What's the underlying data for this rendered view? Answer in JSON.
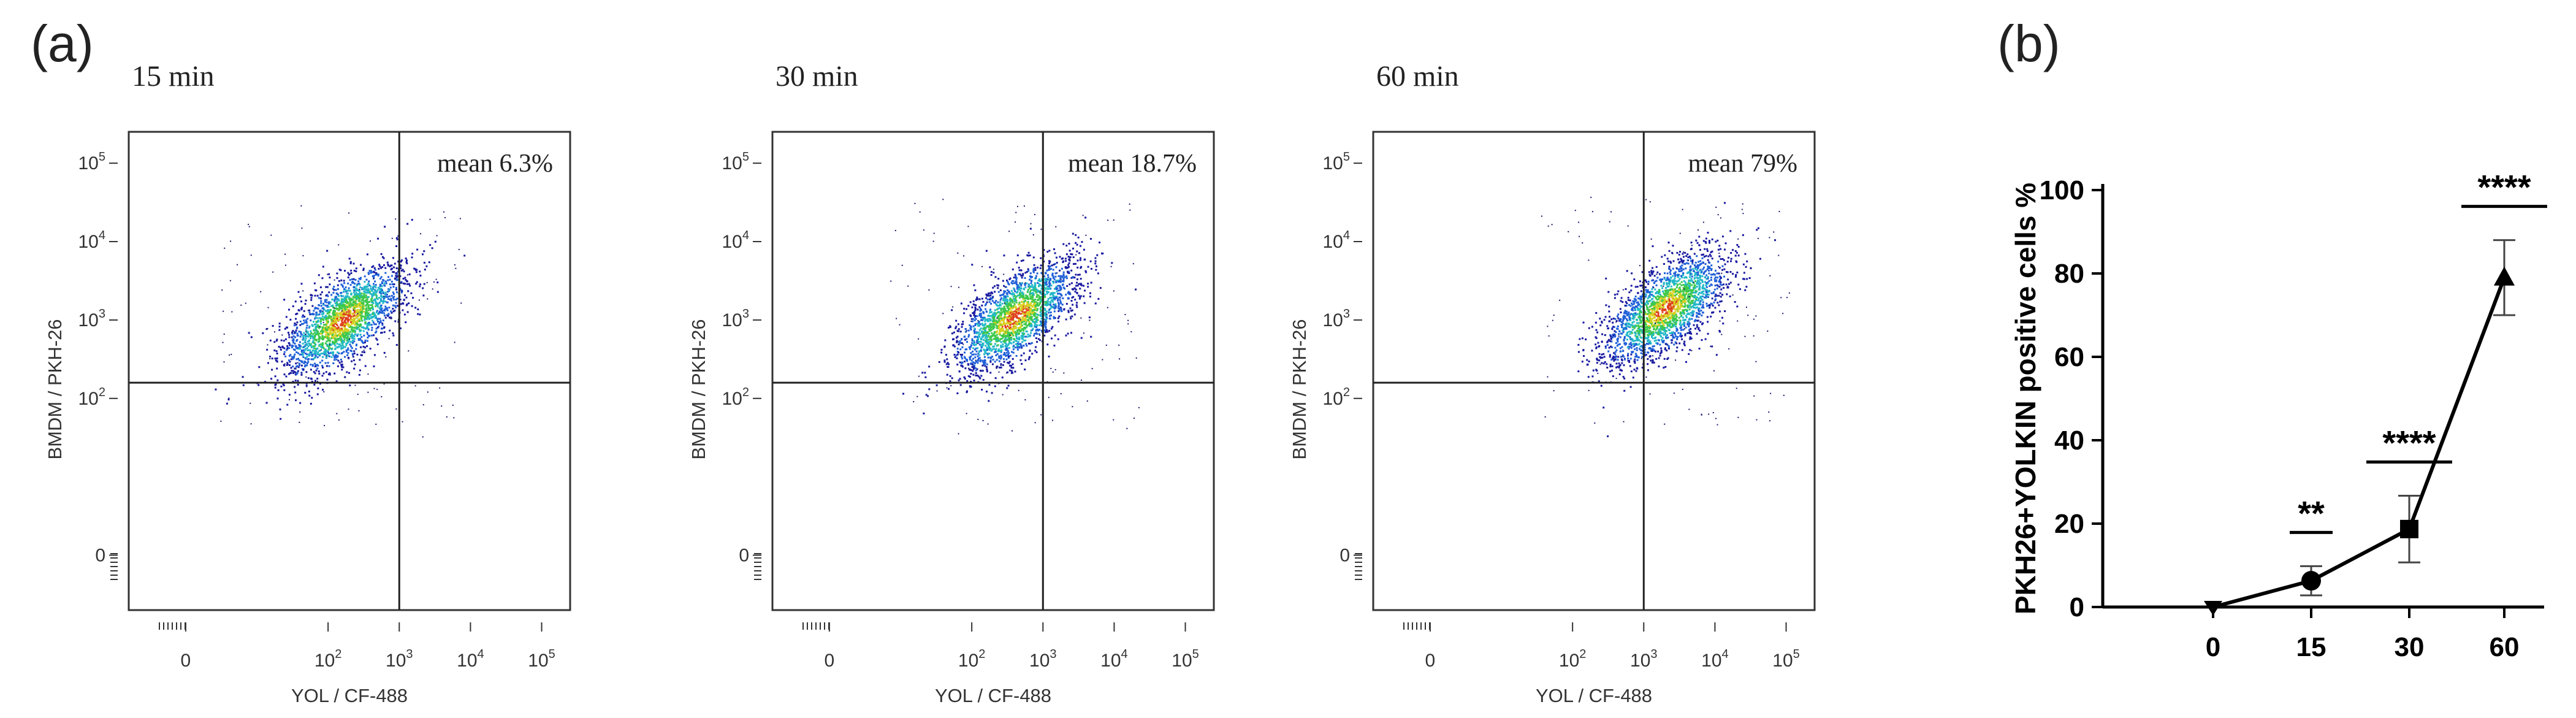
{
  "panels": {
    "a_label": "(a)",
    "b_label": "(b)"
  },
  "flow_plots": [
    {
      "title": "15 min",
      "annotation": "mean 6.3%",
      "dense_center": [
        2.2,
        3.0
      ]
    },
    {
      "title": "30 min",
      "annotation": "mean 18.7%",
      "dense_center": [
        2.6,
        3.05
      ]
    },
    {
      "title": "60 min",
      "annotation": "mean 79%",
      "dense_center": [
        3.3,
        3.15
      ]
    }
  ],
  "flow_axes": {
    "xlabel": "YOL / CF-488",
    "ylabel": "BMDM / PKH-26",
    "x_ticks": [
      {
        "base": "0",
        "exp": "",
        "pos": 0
      },
      {
        "base": "10",
        "exp": "2",
        "pos": 2
      },
      {
        "base": "10",
        "exp": "3",
        "pos": 3
      },
      {
        "base": "10",
        "exp": "4",
        "pos": 4
      },
      {
        "base": "10",
        "exp": "5",
        "pos": 5
      }
    ],
    "y_ticks": [
      {
        "base": "0",
        "exp": "",
        "pos": 0
      },
      {
        "base": "10",
        "exp": "2",
        "pos": 2
      },
      {
        "base": "10",
        "exp": "3",
        "pos": 3
      },
      {
        "base": "10",
        "exp": "4",
        "pos": 4
      },
      {
        "base": "10",
        "exp": "5",
        "pos": 5
      }
    ],
    "gate_x": 3.0,
    "gate_y": 2.2
  },
  "chart_data": {
    "type": "line",
    "ylabel": "PKH26+YOLKIN positive cells %",
    "xlabel": "",
    "categories": [
      "0",
      "15",
      "30",
      "60"
    ],
    "series": [
      {
        "values": [
          0,
          6.3,
          18.7,
          79
        ],
        "errors": [
          0,
          3.5,
          8,
          9
        ],
        "markers": [
          "triangle-down",
          "circle",
          "square",
          "triangle-up"
        ]
      }
    ],
    "ylim": [
      0,
      100
    ],
    "yticks": [
      0,
      20,
      40,
      60,
      80,
      100
    ],
    "significance": [
      {
        "label": "**",
        "category": "15"
      },
      {
        "label": "****",
        "category": "30"
      },
      {
        "label": "****",
        "category": "60"
      }
    ],
    "colors": {
      "line": "#000000"
    }
  }
}
